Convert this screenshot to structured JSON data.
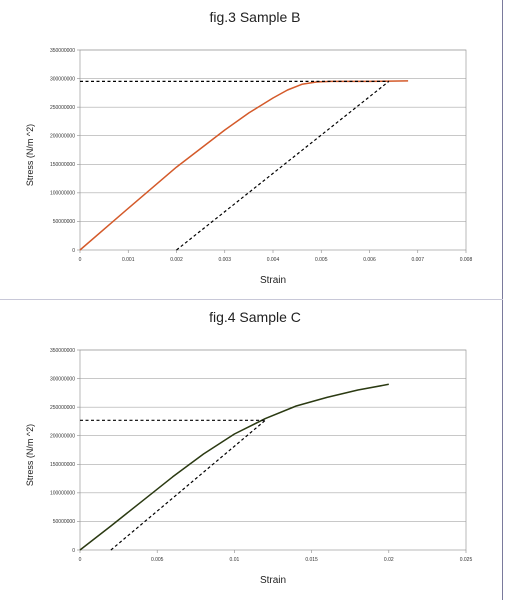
{
  "chart_data": [
    {
      "type": "line",
      "title": "fig.3 Sample B",
      "xlabel": "Strain",
      "ylabel": "Stress (N/m ^2)",
      "xlim": [
        0,
        0.008
      ],
      "ylim": [
        0,
        350000000
      ],
      "x_ticks": [
        "0",
        "0.001",
        "0.002",
        "0.003",
        "0.004",
        "0.005",
        "0.006",
        "0.007",
        "0.008"
      ],
      "y_ticks": [
        "0",
        "50000000",
        "100000000",
        "150000000",
        "200000000",
        "250000000",
        "300000000",
        "350000000"
      ],
      "grid": "horizontal",
      "series": [
        {
          "color": "#d45a2a",
          "style": "solid",
          "x": [
            0,
            0.001,
            0.002,
            0.003,
            0.0035,
            0.004,
            0.0043,
            0.0046,
            0.0049,
            0.0052,
            0.006,
            0.0068
          ],
          "y": [
            0,
            73000000,
            145000000,
            210000000,
            240000000,
            266000000,
            280000000,
            290000000,
            294000000,
            295000000,
            295000000,
            296000000
          ]
        },
        {
          "color": "#000000",
          "style": "dashed",
          "x": [
            0,
            0.0064
          ],
          "y": [
            295000000,
            295000000
          ]
        },
        {
          "color": "#000000",
          "style": "dashed",
          "x": [
            0.002,
            0.0064
          ],
          "y": [
            0,
            295000000
          ]
        }
      ]
    },
    {
      "type": "line",
      "title": "fig.4 Sample C",
      "xlabel": "Strain",
      "ylabel": "Stress (N/m ^2)",
      "xlim": [
        0,
        0.025
      ],
      "ylim": [
        0,
        350000000
      ],
      "x_ticks": [
        "0",
        "0.005",
        "0.01",
        "0.015",
        "0.02",
        "0.025"
      ],
      "y_ticks": [
        "0",
        "50000000",
        "100000000",
        "150000000",
        "200000000",
        "250000000",
        "300000000",
        "350000000"
      ],
      "grid": "horizontal",
      "series": [
        {
          "color": "#2b3a12",
          "style": "solid",
          "x": [
            0,
            0.002,
            0.004,
            0.006,
            0.008,
            0.01,
            0.012,
            0.014,
            0.016,
            0.018,
            0.02
          ],
          "y": [
            0,
            42000000,
            85000000,
            128000000,
            168000000,
            203000000,
            230000000,
            252000000,
            267000000,
            280000000,
            290000000
          ]
        },
        {
          "color": "#000000",
          "style": "dashed",
          "x": [
            0,
            0.012
          ],
          "y": [
            227000000,
            227000000
          ]
        },
        {
          "color": "#000000",
          "style": "dashed",
          "x": [
            0.002,
            0.012
          ],
          "y": [
            0,
            227000000
          ]
        }
      ]
    }
  ]
}
